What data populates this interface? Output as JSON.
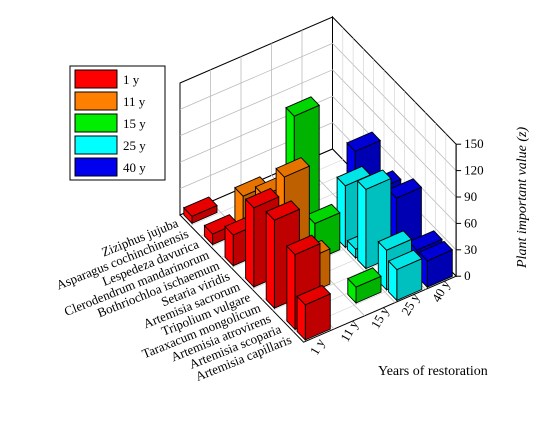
{
  "chart_data": {
    "type": "bar",
    "title": "",
    "xlabel": "Years of restoration",
    "zlabel": "Plant important value (z)",
    "zlim": [
      0,
      150
    ],
    "zticks": [
      "0",
      "30",
      "60",
      "90",
      "120",
      "150"
    ],
    "categories": [
      "Ziziphus jujuba",
      "Asparagus cochinchinensis",
      "Lespedeza davurica",
      "Clerodendrum mandarinorum",
      "Bothriochloa ischaemum",
      "Setaria viridis",
      "Artemisia sacrorum",
      "Tripolium vulgare",
      "Taraxacum mongolicum",
      "Artemisia atrovirens",
      "Artemisia scoparia",
      "Artemisia capillaris"
    ],
    "series": [
      {
        "name": "1 y",
        "color": "#ff0000",
        "values": [
          8,
          0,
          12,
          0,
          35,
          0,
          90,
          0,
          100,
          0,
          85,
          40
        ]
      },
      {
        "name": "11 y",
        "color": "#ff8000",
        "values": [
          0,
          0,
          40,
          0,
          65,
          0,
          110,
          0,
          40,
          0,
          0,
          0
        ]
      },
      {
        "name": "15 y",
        "color": "#00ee00",
        "values": [
          0,
          0,
          0,
          0,
          140,
          0,
          42,
          0,
          0,
          0,
          18,
          0
        ]
      },
      {
        "name": "25 y",
        "color": "#00ffff",
        "values": [
          0,
          0,
          0,
          0,
          0,
          0,
          70,
          10,
          90,
          0,
          45,
          35
        ]
      },
      {
        "name": "40 y",
        "color": "#0000ee",
        "values": [
          0,
          0,
          0,
          0,
          70,
          0,
          50,
          0,
          65,
          0,
          30,
          30
        ]
      }
    ],
    "grid": true,
    "legend": "left"
  }
}
